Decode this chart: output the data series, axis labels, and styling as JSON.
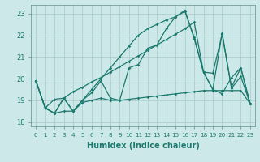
{
  "xlabel": "Humidex (Indice chaleur)",
  "xlim": [
    -0.5,
    23.5
  ],
  "ylim": [
    17.8,
    23.4
  ],
  "yticks": [
    18,
    19,
    20,
    21,
    22,
    23
  ],
  "xticks": [
    0,
    1,
    2,
    3,
    4,
    5,
    6,
    7,
    8,
    9,
    10,
    11,
    12,
    13,
    14,
    15,
    16,
    17,
    18,
    19,
    20,
    21,
    22,
    23
  ],
  "background_color": "#cde8e8",
  "grid_color": "#aecece",
  "line_color": "#1a7a6e",
  "series": [
    [
      19.9,
      18.65,
      18.4,
      19.1,
      18.5,
      19.0,
      19.35,
      19.9,
      19.1,
      19.0,
      20.5,
      20.65,
      21.4,
      21.55,
      22.3,
      22.85,
      23.1,
      21.9,
      20.3,
      19.5,
      19.3,
      20.05,
      20.5,
      18.85
    ],
    [
      19.9,
      18.65,
      18.4,
      18.5,
      18.5,
      18.9,
      19.0,
      19.1,
      19.0,
      19.0,
      19.05,
      19.1,
      19.15,
      19.2,
      19.25,
      19.3,
      19.35,
      19.4,
      19.45,
      19.45,
      19.45,
      19.45,
      19.45,
      18.85
    ],
    [
      19.9,
      18.65,
      19.05,
      19.1,
      19.4,
      19.6,
      19.85,
      20.05,
      20.3,
      20.55,
      20.8,
      21.05,
      21.3,
      21.55,
      21.8,
      22.05,
      22.3,
      22.6,
      20.3,
      20.25,
      22.05,
      19.55,
      20.1,
      18.85
    ],
    [
      19.9,
      18.65,
      18.4,
      19.1,
      18.5,
      19.0,
      19.5,
      20.0,
      20.5,
      21.0,
      21.5,
      22.0,
      22.3,
      22.5,
      22.7,
      22.85,
      23.15,
      21.85,
      20.3,
      19.5,
      22.1,
      19.6,
      20.5,
      18.85
    ]
  ]
}
